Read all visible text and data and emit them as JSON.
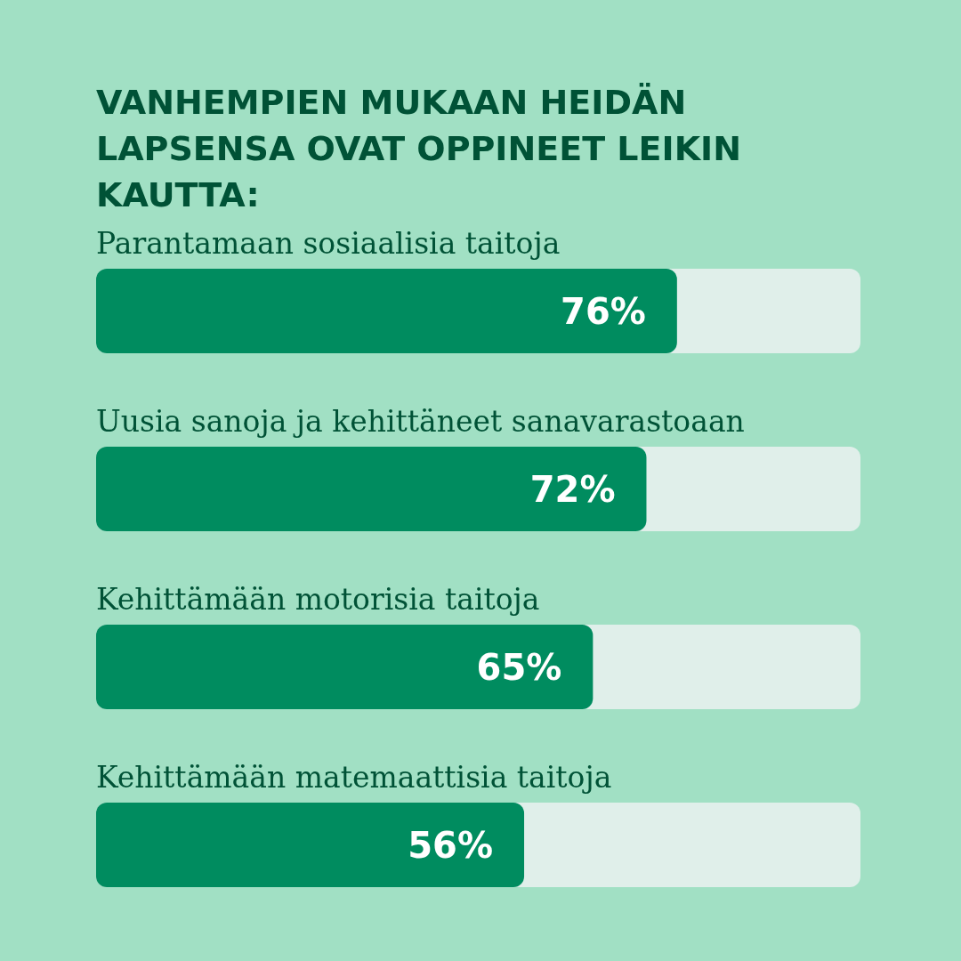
{
  "chart_data": {
    "type": "bar",
    "orientation": "horizontal",
    "title": "VANHEMPIEN MUKAAN HEIDÄN LAPSENSA OVAT OPPINEET LEIKIN KAUTTA:",
    "categories": [
      "Parantamaan sosiaalisia taitoja",
      "Uusia sanoja ja kehittäneet sanavarastoaan",
      "Kehittämään motorisia taitoja",
      "Kehittämään matemaattisia taitoja"
    ],
    "values": [
      76,
      72,
      65,
      56
    ],
    "value_labels": [
      "76%",
      "72%",
      "65%",
      "56%"
    ],
    "color": "#008c5f",
    "xlim": [
      0,
      100
    ],
    "tick_labels": false
  }
}
